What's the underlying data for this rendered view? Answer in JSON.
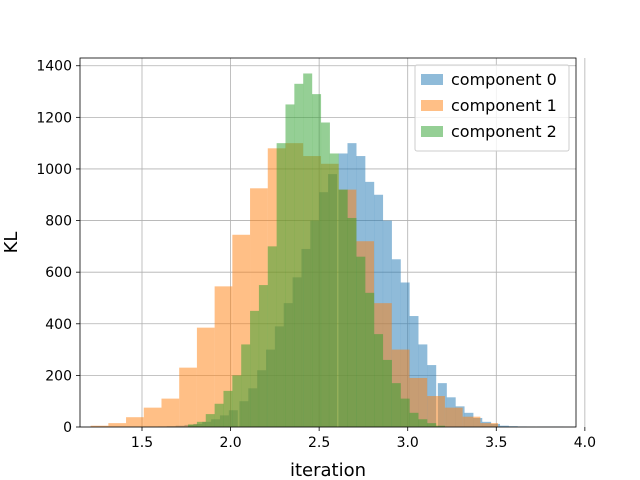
{
  "chart_data": {
    "type": "bar",
    "xlabel": "iteration",
    "ylabel": "KL",
    "xlim": [
      1.15,
      3.95
    ],
    "ylim": [
      0,
      1430
    ],
    "xticks": [
      "1.5",
      "2.0",
      "2.5",
      "3.0",
      "3.5",
      "4.0"
    ],
    "yticks": [
      "0",
      "200",
      "400",
      "600",
      "800",
      "1000",
      "1200",
      "1400"
    ],
    "grid": true,
    "legend_position": "top-right",
    "bin_width": 0.0508,
    "series": [
      {
        "name": "component 0",
        "color": "#1f77b4",
        "bin_starts": [
          1.59,
          1.64,
          1.69,
          1.74,
          1.79,
          1.84,
          1.89,
          1.94,
          1.99,
          2.05,
          2.1,
          2.15,
          2.2,
          2.25,
          2.3,
          2.35,
          2.4,
          2.45,
          2.5,
          2.55,
          2.61,
          2.66,
          2.71,
          2.76,
          2.81,
          2.86,
          2.91,
          2.96,
          3.01,
          3.06,
          3.11,
          3.17,
          3.22,
          3.27,
          3.32,
          3.37,
          3.42,
          3.47,
          3.52,
          3.57,
          3.62,
          3.67,
          3.73,
          3.78,
          3.83
        ],
        "values": [
          2,
          3,
          5,
          8,
          12,
          20,
          30,
          45,
          65,
          100,
          150,
          220,
          300,
          390,
          480,
          580,
          690,
          800,
          910,
          980,
          1060,
          1100,
          1050,
          950,
          900,
          800,
          650,
          560,
          430,
          320,
          240,
          170,
          115,
          80,
          55,
          35,
          20,
          12,
          5,
          3,
          2,
          1,
          1,
          1,
          1
        ]
      },
      {
        "name": "component 1",
        "color": "#ff7f0e",
        "bin_starts": [
          1.21,
          1.31,
          1.41,
          1.51,
          1.61,
          1.71,
          1.81,
          1.91,
          2.01,
          2.11,
          2.21,
          2.31,
          2.41,
          2.51,
          2.61,
          2.71,
          2.81,
          2.91,
          3.01,
          3.11,
          3.21,
          3.31,
          3.41
        ],
        "values": [
          5,
          15,
          38,
          75,
          110,
          230,
          385,
          545,
          745,
          925,
          1080,
          1100,
          1050,
          1020,
          920,
          720,
          480,
          300,
          190,
          120,
          75,
          40,
          15
        ]
      },
      {
        "name": "component 2",
        "color": "#2ca02c",
        "bin_starts": [
          1.76,
          1.81,
          1.86,
          1.91,
          1.96,
          2.01,
          2.06,
          2.11,
          2.16,
          2.21,
          2.26,
          2.31,
          2.36,
          2.41,
          2.46,
          2.51,
          2.56,
          2.61,
          2.66,
          2.71,
          2.76,
          2.81,
          2.86,
          2.91,
          2.96,
          3.01,
          3.06,
          3.11,
          3.16
        ],
        "values": [
          10,
          20,
          50,
          90,
          140,
          200,
          320,
          450,
          550,
          700,
          1100,
          1250,
          1330,
          1370,
          1290,
          1180,
          1060,
          920,
          810,
          660,
          520,
          360,
          260,
          170,
          110,
          55,
          30,
          15,
          5
        ]
      }
    ]
  }
}
